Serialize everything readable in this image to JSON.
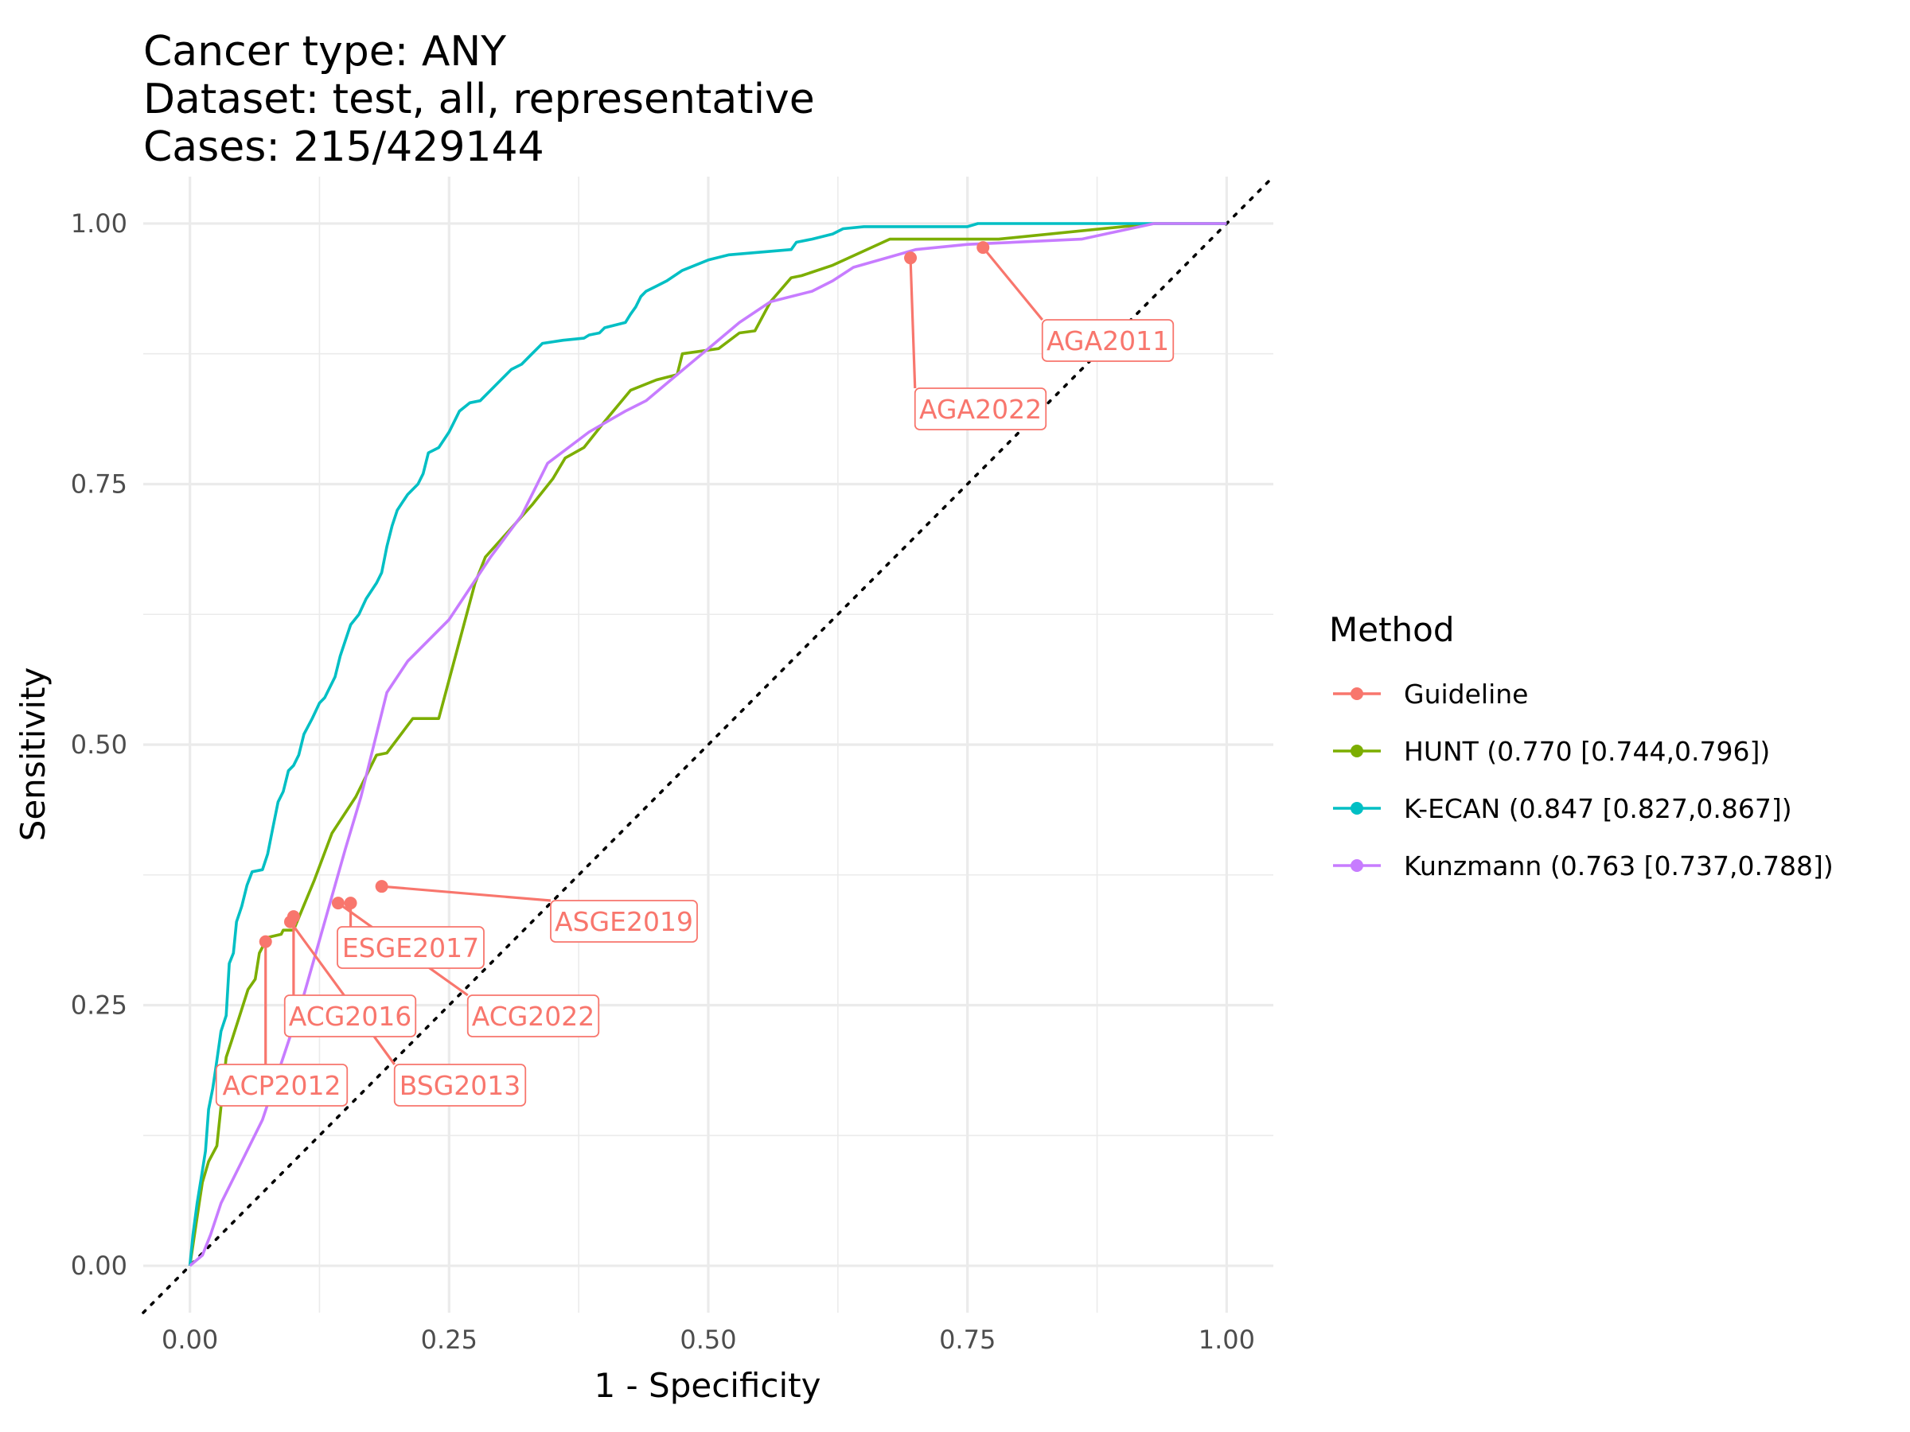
{
  "chart_data": {
    "type": "line",
    "title_lines": [
      "Cancer type: ANY",
      "Dataset: test, all, representative",
      "Cases: 215/429144"
    ],
    "xlabel": "1 - Specificity",
    "ylabel": "Sensitivity",
    "xlim": [
      -0.045,
      1.045
    ],
    "ylim": [
      -0.045,
      1.045
    ],
    "x_ticks": [
      0.0,
      0.25,
      0.5,
      0.75,
      1.0
    ],
    "x_tick_labels": [
      "0.00",
      "0.25",
      "0.50",
      "0.75",
      "1.00"
    ],
    "y_ticks": [
      0.0,
      0.25,
      0.5,
      0.75,
      1.0
    ],
    "y_tick_labels": [
      "0.00",
      "0.25",
      "0.50",
      "0.75",
      "1.00"
    ],
    "grid": true,
    "diagonal_reference": true,
    "legend": {
      "title": "Method",
      "position": "right",
      "entries": [
        {
          "label": "Guideline",
          "color": "#F8766D"
        },
        {
          "label": "HUNT (0.770 [0.744,0.796])",
          "color": "#7CAE00"
        },
        {
          "label": "K-ECAN (0.847 [0.827,0.867])",
          "color": "#00BFC4"
        },
        {
          "label": "Kunzmann (0.763 [0.737,0.788])",
          "color": "#C77CFF"
        }
      ]
    },
    "series": [
      {
        "name": "HUNT (0.770 [0.744,0.796])",
        "color": "#7CAE00",
        "points": [
          [
            0,
            0
          ],
          [
            0.003,
            0.02
          ],
          [
            0.006,
            0.04
          ],
          [
            0.009,
            0.06
          ],
          [
            0.012,
            0.08
          ],
          [
            0.018,
            0.1
          ],
          [
            0.026,
            0.115
          ],
          [
            0.035,
            0.2
          ],
          [
            0.04,
            0.215
          ],
          [
            0.048,
            0.24
          ],
          [
            0.056,
            0.265
          ],
          [
            0.063,
            0.275
          ],
          [
            0.067,
            0.3
          ],
          [
            0.075,
            0.315
          ],
          [
            0.088,
            0.318
          ],
          [
            0.09,
            0.322
          ],
          [
            0.1,
            0.322
          ],
          [
            0.12,
            0.37
          ],
          [
            0.137,
            0.415
          ],
          [
            0.16,
            0.45
          ],
          [
            0.18,
            0.49
          ],
          [
            0.19,
            0.492
          ],
          [
            0.215,
            0.525
          ],
          [
            0.24,
            0.525
          ],
          [
            0.275,
            0.655
          ],
          [
            0.285,
            0.68
          ],
          [
            0.33,
            0.73
          ],
          [
            0.35,
            0.755
          ],
          [
            0.362,
            0.775
          ],
          [
            0.38,
            0.785
          ],
          [
            0.4,
            0.81
          ],
          [
            0.425,
            0.84
          ],
          [
            0.45,
            0.85
          ],
          [
            0.47,
            0.855
          ],
          [
            0.475,
            0.875
          ],
          [
            0.51,
            0.88
          ],
          [
            0.53,
            0.895
          ],
          [
            0.545,
            0.897
          ],
          [
            0.56,
            0.925
          ],
          [
            0.58,
            0.948
          ],
          [
            0.59,
            0.95
          ],
          [
            0.62,
            0.96
          ],
          [
            0.675,
            0.985
          ],
          [
            0.78,
            0.985
          ],
          [
            0.93,
            1.0
          ],
          [
            1.0,
            1.0
          ]
        ]
      },
      {
        "name": "K-ECAN (0.847 [0.827,0.867])",
        "color": "#00BFC4",
        "points": [
          [
            0,
            0
          ],
          [
            0.003,
            0.03
          ],
          [
            0.007,
            0.06
          ],
          [
            0.011,
            0.085
          ],
          [
            0.015,
            0.11
          ],
          [
            0.018,
            0.15
          ],
          [
            0.022,
            0.17
          ],
          [
            0.025,
            0.19
          ],
          [
            0.03,
            0.225
          ],
          [
            0.035,
            0.24
          ],
          [
            0.038,
            0.29
          ],
          [
            0.042,
            0.3
          ],
          [
            0.045,
            0.33
          ],
          [
            0.05,
            0.345
          ],
          [
            0.055,
            0.365
          ],
          [
            0.06,
            0.378
          ],
          [
            0.07,
            0.38
          ],
          [
            0.075,
            0.395
          ],
          [
            0.08,
            0.42
          ],
          [
            0.085,
            0.445
          ],
          [
            0.09,
            0.455
          ],
          [
            0.095,
            0.475
          ],
          [
            0.1,
            0.48
          ],
          [
            0.105,
            0.49
          ],
          [
            0.11,
            0.51
          ],
          [
            0.118,
            0.525
          ],
          [
            0.125,
            0.54
          ],
          [
            0.13,
            0.545
          ],
          [
            0.14,
            0.565
          ],
          [
            0.145,
            0.585
          ],
          [
            0.15,
            0.6
          ],
          [
            0.155,
            0.615
          ],
          [
            0.163,
            0.625
          ],
          [
            0.17,
            0.64
          ],
          [
            0.18,
            0.655
          ],
          [
            0.185,
            0.665
          ],
          [
            0.19,
            0.69
          ],
          [
            0.195,
            0.71
          ],
          [
            0.2,
            0.725
          ],
          [
            0.21,
            0.74
          ],
          [
            0.22,
            0.75
          ],
          [
            0.225,
            0.76
          ],
          [
            0.23,
            0.78
          ],
          [
            0.24,
            0.785
          ],
          [
            0.25,
            0.8
          ],
          [
            0.255,
            0.81
          ],
          [
            0.26,
            0.82
          ],
          [
            0.27,
            0.828
          ],
          [
            0.28,
            0.83
          ],
          [
            0.29,
            0.84
          ],
          [
            0.3,
            0.85
          ],
          [
            0.31,
            0.86
          ],
          [
            0.32,
            0.865
          ],
          [
            0.33,
            0.875
          ],
          [
            0.34,
            0.885
          ],
          [
            0.36,
            0.888
          ],
          [
            0.38,
            0.89
          ],
          [
            0.385,
            0.893
          ],
          [
            0.395,
            0.895
          ],
          [
            0.4,
            0.9
          ],
          [
            0.42,
            0.905
          ],
          [
            0.425,
            0.913
          ],
          [
            0.43,
            0.92
          ],
          [
            0.435,
            0.93
          ],
          [
            0.44,
            0.935
          ],
          [
            0.45,
            0.94
          ],
          [
            0.46,
            0.945
          ],
          [
            0.475,
            0.955
          ],
          [
            0.5,
            0.965
          ],
          [
            0.52,
            0.97
          ],
          [
            0.58,
            0.975
          ],
          [
            0.585,
            0.982
          ],
          [
            0.6,
            0.985
          ],
          [
            0.62,
            0.99
          ],
          [
            0.63,
            0.995
          ],
          [
            0.65,
            0.997
          ],
          [
            0.75,
            0.997
          ],
          [
            0.76,
            1.0
          ],
          [
            1.0,
            1.0
          ]
        ]
      },
      {
        "name": "Kunzmann (0.763 [0.737,0.788])",
        "color": "#C77CFF",
        "points": [
          [
            0,
            0
          ],
          [
            0.012,
            0.01
          ],
          [
            0.02,
            0.03
          ],
          [
            0.03,
            0.06
          ],
          [
            0.05,
            0.1
          ],
          [
            0.07,
            0.14
          ],
          [
            0.09,
            0.2
          ],
          [
            0.11,
            0.26
          ],
          [
            0.13,
            0.33
          ],
          [
            0.15,
            0.4
          ],
          [
            0.165,
            0.45
          ],
          [
            0.19,
            0.55
          ],
          [
            0.21,
            0.58
          ],
          [
            0.25,
            0.62
          ],
          [
            0.29,
            0.68
          ],
          [
            0.32,
            0.72
          ],
          [
            0.345,
            0.77
          ],
          [
            0.385,
            0.8
          ],
          [
            0.42,
            0.82
          ],
          [
            0.44,
            0.83
          ],
          [
            0.47,
            0.855
          ],
          [
            0.5,
            0.88
          ],
          [
            0.53,
            0.905
          ],
          [
            0.56,
            0.925
          ],
          [
            0.6,
            0.935
          ],
          [
            0.62,
            0.945
          ],
          [
            0.64,
            0.958
          ],
          [
            0.7,
            0.975
          ],
          [
            0.75,
            0.98
          ],
          [
            0.86,
            0.985
          ],
          [
            0.93,
            1.0
          ],
          [
            1.0,
            1.0
          ]
        ]
      }
    ],
    "guideline_points": [
      {
        "name": "AGA2011",
        "x": 0.765,
        "y": 0.977
      },
      {
        "name": "AGA2022",
        "x": 0.695,
        "y": 0.967
      },
      {
        "name": "ASGE2019",
        "x": 0.185,
        "y": 0.364
      },
      {
        "name": "ESGE2017",
        "x": 0.155,
        "y": 0.348
      },
      {
        "name": "ACG2022",
        "x": 0.143,
        "y": 0.348
      },
      {
        "name": "ACG2016",
        "x": 0.1,
        "y": 0.335
      },
      {
        "name": "BSG2013",
        "x": 0.097,
        "y": 0.33
      },
      {
        "name": "ACP2012",
        "x": 0.073,
        "y": 0.311
      }
    ]
  }
}
